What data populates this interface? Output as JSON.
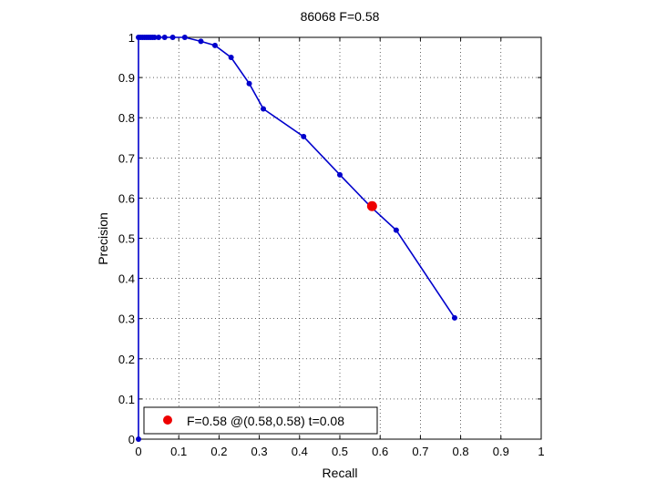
{
  "chart_data": {
    "type": "line",
    "title": "86068 F=0.58",
    "xlabel": "Recall",
    "ylabel": "Precision",
    "xlim": [
      0,
      1
    ],
    "ylim": [
      0,
      1
    ],
    "xticks": [
      "0",
      "0.1",
      "0.2",
      "0.3",
      "0.4",
      "0.5",
      "0.6",
      "0.7",
      "0.8",
      "0.9",
      "1"
    ],
    "yticks": [
      "0",
      "0.1",
      "0.2",
      "0.3",
      "0.4",
      "0.5",
      "0.6",
      "0.7",
      "0.8",
      "0.9",
      "1"
    ],
    "grid": true,
    "legend_position": "bottom-left",
    "colors": {
      "series": "#0000cc",
      "best": "#ee0000"
    },
    "series": [
      {
        "points": [
          [
            0.0,
            0.0
          ],
          [
            0.0,
            1.0
          ],
          [
            0.005,
            1.0
          ],
          [
            0.01,
            1.0
          ],
          [
            0.015,
            1.0
          ],
          [
            0.02,
            1.0
          ],
          [
            0.025,
            1.0
          ],
          [
            0.03,
            1.0
          ],
          [
            0.035,
            1.0
          ],
          [
            0.04,
            1.0
          ],
          [
            0.05,
            1.0
          ],
          [
            0.065,
            1.0
          ],
          [
            0.085,
            1.0
          ],
          [
            0.115,
            1.0
          ],
          [
            0.155,
            0.99
          ],
          [
            0.19,
            0.98
          ],
          [
            0.23,
            0.95
          ],
          [
            0.275,
            0.885
          ],
          [
            0.31,
            0.822
          ],
          [
            0.41,
            0.753
          ],
          [
            0.5,
            0.658
          ],
          [
            0.575,
            0.58
          ],
          [
            0.64,
            0.52
          ],
          [
            0.785,
            0.302
          ]
        ]
      }
    ],
    "best_point": {
      "x": 0.58,
      "y": 0.58
    },
    "legend_label": "F=0.58 @(0.58,0.58) t=0.08"
  }
}
